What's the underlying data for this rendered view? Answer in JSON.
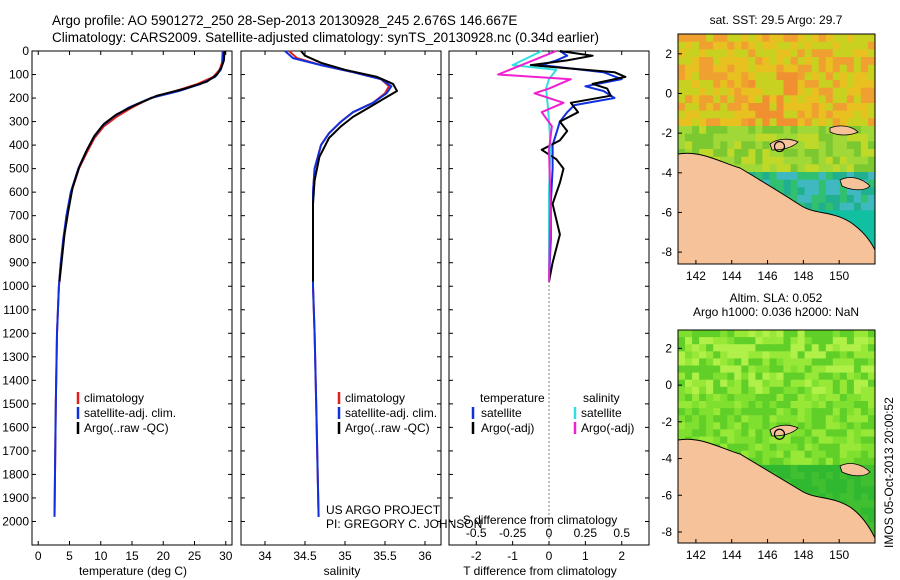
{
  "header": {
    "line1": "Argo profile: AO 5901272_250 28-Sep-2013 20130928_245 2.676S 146.667E",
    "line2": "Climatology: CARS2009. Satellite-adjusted climatology: synTS_20130928.nc (0.34d earlier)"
  },
  "credits": {
    "project": "US ARGO PROJECT",
    "pi": "PI: GREGORY C. JOHNSON",
    "stamp": "IMOS 05-Oct-2013 20:00:52"
  },
  "colors": {
    "climatology": "#e02020",
    "satellite": "#1030e0",
    "argo": "#000000",
    "sal_satellite": "#30e0e0",
    "sal_argo": "#f020d0",
    "land": "#f5c29a"
  },
  "chart_data": [
    {
      "type": "line",
      "name": "temperature-profile",
      "xlabel": "temperature (deg C)",
      "ylabel": "",
      "xlim": [
        -1,
        31
      ],
      "ylim": [
        2100,
        0
      ],
      "xticks": [
        0,
        5,
        10,
        15,
        20,
        25,
        30
      ],
      "yticks": [
        0,
        100,
        200,
        300,
        400,
        500,
        600,
        700,
        800,
        900,
        1000,
        1100,
        1200,
        1300,
        1400,
        1500,
        1600,
        1700,
        1800,
        1900,
        2000
      ],
      "legend": [
        "climatology",
        "satellite-adj. clim.",
        "Argo(..raw -QC)"
      ],
      "series": [
        {
          "name": "climatology",
          "x": [
            29.5,
            29.4,
            29.0,
            28.0,
            25.5,
            22.0,
            18.0,
            15.0,
            12.5,
            10.5,
            9.0,
            7.8,
            6.5,
            5.3,
            4.6,
            4.0,
            3.6,
            3.3,
            3.0,
            2.8,
            2.6
          ],
          "y": [
            0,
            50,
            80,
            110,
            140,
            170,
            200,
            240,
            280,
            320,
            370,
            430,
            500,
            600,
            700,
            800,
            900,
            1000,
            1200,
            1500,
            1980
          ]
        },
        {
          "name": "satellite",
          "x": [
            29.6,
            29.5,
            29.2,
            28.3,
            26.0,
            22.5,
            18.0,
            14.5,
            12.0,
            10.2,
            8.8,
            7.6,
            6.4,
            5.2,
            4.5,
            4.0,
            3.6,
            3.3,
            3.0,
            2.8,
            2.6
          ],
          "y": [
            0,
            50,
            80,
            110,
            140,
            170,
            200,
            240,
            280,
            320,
            370,
            430,
            500,
            600,
            700,
            800,
            900,
            1000,
            1200,
            1500,
            1980
          ]
        },
        {
          "name": "argo",
          "x": [
            29.8,
            29.7,
            29.3,
            28.6,
            27.0,
            23.5,
            19.0,
            15.5,
            12.5,
            10.5,
            9.0,
            7.8,
            6.6,
            5.5,
            4.8,
            4.2,
            3.8,
            3.4
          ],
          "y": [
            0,
            40,
            70,
            100,
            130,
            160,
            190,
            230,
            270,
            310,
            360,
            420,
            490,
            580,
            680,
            780,
            880,
            980
          ]
        }
      ]
    },
    {
      "type": "line",
      "name": "salinity-profile",
      "xlabel": "salinity",
      "ylabel": "",
      "xlim": [
        33.7,
        36.2
      ],
      "ylim": [
        2100,
        0
      ],
      "xticks": [
        34,
        34.5,
        35,
        35.5,
        36
      ],
      "legend": [
        "climatology",
        "satellite-adj. clim.",
        "Argo(..raw -QC)"
      ],
      "series": [
        {
          "name": "climatology",
          "x": [
            34.3,
            34.4,
            34.7,
            35.1,
            35.45,
            35.55,
            35.5,
            35.35,
            35.1,
            34.95,
            34.8,
            34.7,
            34.62,
            34.6,
            34.6,
            34.6,
            34.6,
            34.6,
            34.62,
            34.64,
            34.67
          ],
          "y": [
            0,
            30,
            60,
            90,
            120,
            150,
            180,
            220,
            260,
            300,
            350,
            400,
            500,
            600,
            700,
            800,
            900,
            1000,
            1200,
            1500,
            1980
          ]
        },
        {
          "name": "satellite",
          "x": [
            34.25,
            34.35,
            34.7,
            35.1,
            35.45,
            35.58,
            35.52,
            35.35,
            35.1,
            34.95,
            34.8,
            34.7,
            34.62,
            34.6,
            34.6,
            34.6,
            34.6,
            34.6,
            34.62,
            34.64,
            34.67
          ],
          "y": [
            0,
            30,
            60,
            90,
            120,
            150,
            180,
            220,
            260,
            300,
            350,
            400,
            500,
            600,
            700,
            800,
            900,
            1000,
            1200,
            1500,
            1980
          ]
        },
        {
          "name": "argo",
          "x": [
            34.45,
            34.5,
            34.7,
            35.0,
            35.4,
            35.6,
            35.65,
            35.5,
            35.3,
            35.1,
            34.95,
            34.8,
            34.68,
            34.62,
            34.6,
            34.6,
            34.6
          ],
          "y": [
            0,
            20,
            50,
            80,
            110,
            140,
            170,
            200,
            240,
            280,
            320,
            370,
            450,
            550,
            650,
            800,
            980
          ]
        }
      ]
    },
    {
      "type": "line",
      "name": "difference-from-climatology",
      "xlabel": "T difference from climatology",
      "xlabel2": "S difference from climatology",
      "xlim": [
        -2.75,
        2.75
      ],
      "ylim": [
        2100,
        0
      ],
      "xticks": [
        -2,
        -1,
        0,
        1,
        2
      ],
      "xticks_top": [
        -0.5,
        -0.25,
        0,
        0.25,
        0.5
      ],
      "legend_headers": [
        "temperature",
        "salinity"
      ],
      "legend": [
        "satellite",
        "Argo(-adj)",
        "satellite",
        "Argo(-adj)"
      ],
      "series": [
        {
          "name": "T satellite",
          "x": [
            0.3,
            0.5,
            0.2,
            -0.2,
            1.5,
            2.0,
            1.0,
            1.5,
            1.8,
            0.7,
            0.5,
            0.3,
            0.2,
            0.1,
            0.1,
            0.05,
            0.05,
            0.0
          ],
          "y": [
            0,
            20,
            40,
            60,
            90,
            120,
            150,
            170,
            200,
            230,
            260,
            300,
            350,
            400,
            500,
            650,
            800,
            980
          ]
        },
        {
          "name": "T Argo",
          "x": [
            0.3,
            1.2,
            0.5,
            -0.5,
            1.8,
            2.1,
            1.2,
            1.6,
            1.7,
            0.6,
            0.8,
            0.3,
            0.5,
            0.3,
            -0.2,
            0.2,
            0.4,
            0.3,
            0.1,
            0.3,
            0.1,
            0.0
          ],
          "y": [
            0,
            20,
            40,
            60,
            90,
            110,
            140,
            160,
            190,
            220,
            260,
            300,
            340,
            380,
            420,
            460,
            500,
            560,
            650,
            780,
            900,
            980
          ]
        },
        {
          "name": "S satellite",
          "x": [
            -0.05,
            -0.25,
            0.05,
            0.0,
            -0.02,
            -0.01,
            0.0,
            0.01,
            0.0,
            0.0,
            0.0
          ],
          "y": [
            0,
            60,
            80,
            120,
            160,
            220,
            300,
            400,
            600,
            800,
            980
          ]
        },
        {
          "name": "S Argo",
          "x": [
            0.05,
            -0.35,
            0.15,
            0.0,
            -0.1,
            0.1,
            -0.05,
            0.02,
            0.0,
            0.01,
            0.0
          ],
          "y": [
            0,
            100,
            120,
            160,
            180,
            220,
            260,
            320,
            420,
            650,
            980
          ]
        }
      ]
    },
    {
      "type": "heatmap",
      "name": "sst-map",
      "title": "sat. SST: 29.5 Argo: 29.7",
      "xticks": [
        142,
        144,
        146,
        148,
        150
      ],
      "yticks": [
        2,
        0,
        -2,
        -4,
        -6,
        -8
      ],
      "xlim": [
        141,
        152
      ],
      "ylim": [
        -8.6,
        3.0
      ],
      "marker": {
        "lon": 146.667,
        "lat": -2.676
      }
    },
    {
      "type": "heatmap",
      "name": "sla-map",
      "title": "Altim. SLA: 0.052",
      "subtitle": "Argo h1000: 0.036 h2000: NaN",
      "xticks": [
        142,
        144,
        146,
        148,
        150
      ],
      "yticks": [
        2,
        0,
        -2,
        -4,
        -6,
        -8
      ],
      "xlim": [
        141,
        152
      ],
      "ylim": [
        -8.6,
        3.0
      ],
      "marker": {
        "lon": 146.667,
        "lat": -2.676
      }
    }
  ]
}
